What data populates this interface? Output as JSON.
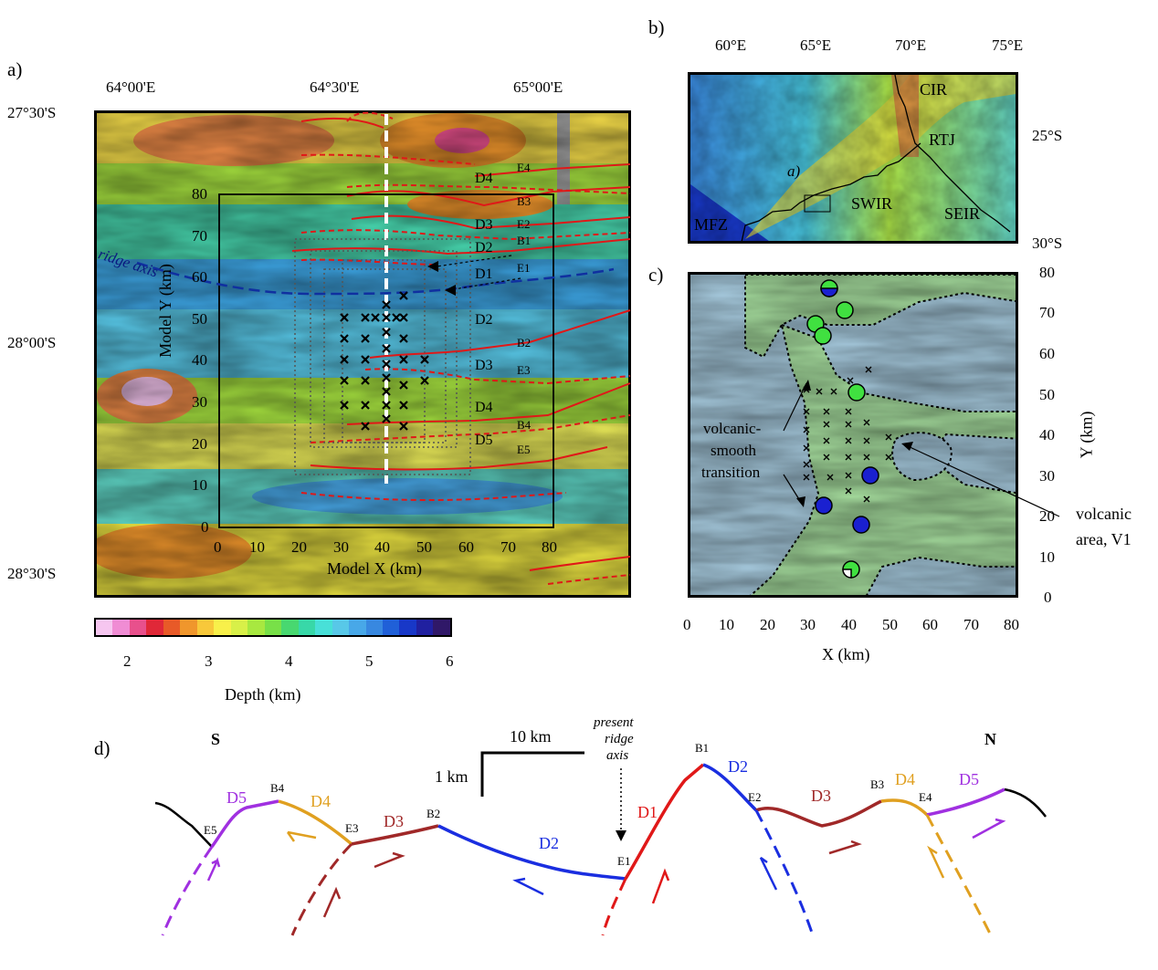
{
  "panel_a": {
    "label": "a)",
    "lon_ticks": [
      "64°00'E",
      "64°30'E",
      "65°00'E"
    ],
    "lat_ticks": [
      "27°30'S",
      "28°00'S",
      "28°30'S"
    ],
    "model_x_ticks": [
      "0",
      "10",
      "20",
      "30",
      "40",
      "50",
      "60",
      "70",
      "80"
    ],
    "model_y_ticks": [
      "0",
      "10",
      "20",
      "30",
      "40",
      "50",
      "60",
      "70",
      "80"
    ],
    "xlabel": "Model X (km)",
    "ylabel": "Model Y (km)",
    "ridge_axis": "ridge axis",
    "segments": [
      "E4",
      "D4",
      "B3",
      "D3",
      "E2",
      "D2",
      "B1",
      "D1",
      "E1",
      "D2",
      "B2",
      "D3",
      "E3",
      "D4",
      "B4",
      "D5",
      "E5"
    ]
  },
  "colorbar": {
    "ticks": [
      "2",
      "3",
      "4",
      "5",
      "6"
    ],
    "label": "Depth (km)",
    "colors": [
      "#f6c6f0",
      "#f08cd4",
      "#e8508c",
      "#e02838",
      "#e85a28",
      "#f0962c",
      "#f8c83a",
      "#f8f04a",
      "#d8f048",
      "#a8e840",
      "#78e048",
      "#48d870",
      "#38d8a8",
      "#48e0d8",
      "#58c8e8",
      "#48a8e8",
      "#3888e0",
      "#2060d8",
      "#1838c8",
      "#2020a0",
      "#301868"
    ]
  },
  "panel_b": {
    "label": "b)",
    "lon_ticks": [
      "60°E",
      "65°E",
      "70°E",
      "75°E"
    ],
    "lat_ticks": [
      "25°S",
      "30°S"
    ],
    "names": [
      "CIR",
      "RTJ",
      "SWIR",
      "SEIR",
      "MFZ",
      "a)"
    ]
  },
  "panel_c": {
    "label": "c)",
    "x_ticks": [
      "0",
      "10",
      "20",
      "30",
      "40",
      "50",
      "60",
      "70",
      "80"
    ],
    "y_ticks": [
      "0",
      "10",
      "20",
      "30",
      "40",
      "50",
      "60",
      "70",
      "80"
    ],
    "xlabel": "X (km)",
    "ylabel": "Y (km)",
    "annot_left": [
      "volcanic-",
      "smooth",
      "transition"
    ],
    "annot_right": [
      "volcanic",
      "area, V1"
    ]
  },
  "panel_d": {
    "label": "d)",
    "south": "S",
    "north": "N",
    "scale_h": "10 km",
    "scale_v": "1 km",
    "axis_note": [
      "present",
      "ridge",
      "axis"
    ],
    "labels": [
      "D5",
      "B4",
      "D4",
      "E5",
      "E3",
      "D3",
      "B2",
      "D2",
      "E1",
      "D1",
      "B1",
      "D2",
      "E2",
      "D3",
      "B3",
      "D4",
      "E4",
      "D5"
    ],
    "colors": {
      "D1": "#e01818",
      "D2": "#1a2ee0",
      "D3": "#a02828",
      "D4": "#e0a020",
      "D5": "#a030e0",
      "edge": "#000000"
    }
  }
}
